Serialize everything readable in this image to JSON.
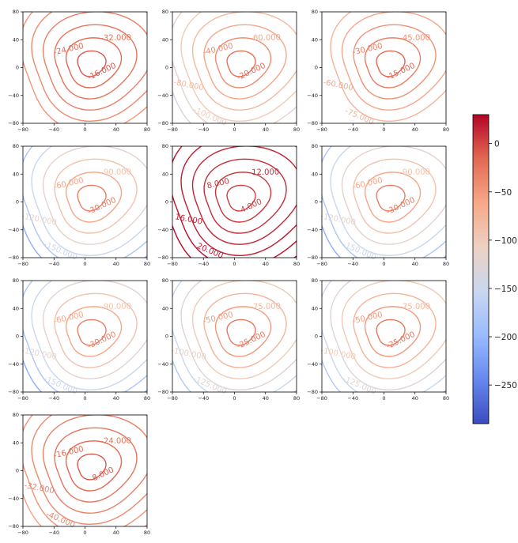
{
  "colorbar": {
    "colors": [
      "#3b4cc0",
      "#6788ee",
      "#9abbff",
      "#c9d7f0",
      "#edd1c2",
      "#f7a889",
      "#e26952",
      "#b40426"
    ],
    "range": [
      -290,
      30
    ],
    "ticks": [
      0,
      -50,
      -100,
      -150,
      -200,
      -250
    ],
    "tick_labels": [
      "0",
      "−50",
      "−100",
      "−150",
      "−200",
      "−250"
    ]
  },
  "chart_data": [
    {
      "type": "contour",
      "xlim": [
        -80,
        80
      ],
      "ylim": [
        -80,
        80
      ],
      "x_ticks": [
        -80,
        -40,
        0,
        40,
        80
      ],
      "y_ticks": [
        80,
        40,
        0,
        -40,
        -80
      ],
      "levels": [
        -48,
        -40,
        -32,
        -24,
        -16,
        -8
      ],
      "labels": [
        "-16.000",
        "-24.000",
        "-32.000"
      ]
    },
    {
      "type": "contour",
      "xlim": [
        -80,
        80
      ],
      "ylim": [
        -80,
        80
      ],
      "x_ticks": [
        -80,
        -40,
        0,
        40,
        80
      ],
      "y_ticks": [
        80,
        40,
        0,
        -40,
        -80
      ],
      "levels": [
        -140,
        -120,
        -100,
        -80,
        -60,
        -40,
        -20
      ],
      "labels": [
        "-20.000",
        "-40.000",
        "-60.000",
        "-80.000",
        "-100.000",
        "-120.000"
      ]
    },
    {
      "type": "contour",
      "xlim": [
        -80,
        80
      ],
      "ylim": [
        -80,
        80
      ],
      "x_ticks": [
        -80,
        -40,
        0,
        40,
        80
      ],
      "y_ticks": [
        80,
        40,
        0,
        -40,
        -80
      ],
      "levels": [
        -75,
        -60,
        -45,
        -30,
        -15
      ],
      "labels": [
        "-15.000",
        "-30.000",
        "-45.000",
        "-60.000",
        "-75.000"
      ]
    },
    {
      "type": "contour",
      "xlim": [
        -80,
        80
      ],
      "ylim": [
        -80,
        80
      ],
      "x_ticks": [
        -80,
        -40,
        0,
        40,
        80
      ],
      "y_ticks": [
        80,
        40,
        0,
        -40,
        -80
      ],
      "levels": [
        -210,
        -180,
        -150,
        -120,
        -90,
        -60,
        -30
      ],
      "labels": [
        "-30.000",
        "-60.000",
        "-90.000",
        "-120.000",
        "-150.000"
      ]
    },
    {
      "type": "contour",
      "xlim": [
        -80,
        80
      ],
      "ylim": [
        -80,
        80
      ],
      "x_ticks": [
        -80,
        -40,
        0,
        40,
        80
      ],
      "y_ticks": [
        80,
        40,
        0,
        -40,
        -80
      ],
      "levels": [
        28,
        24,
        20,
        16,
        12,
        8,
        4
      ],
      "labels": [
        "4.000",
        "8.000",
        "12.000",
        "16.000",
        "20.000",
        "24.000"
      ]
    },
    {
      "type": "contour",
      "xlim": [
        -80,
        80
      ],
      "ylim": [
        -80,
        80
      ],
      "x_ticks": [
        -80,
        -40,
        0,
        40,
        80
      ],
      "y_ticks": [
        80,
        40,
        0,
        -40,
        -80
      ],
      "levels": [
        -210,
        -180,
        -150,
        -120,
        -90,
        -60,
        -30
      ],
      "labels": [
        "-30.000",
        "-60.000",
        "-90.000",
        "-120.000",
        "-150.000"
      ]
    },
    {
      "type": "contour",
      "xlim": [
        -80,
        80
      ],
      "ylim": [
        -80,
        80
      ],
      "x_ticks": [
        -80,
        -40,
        0,
        40,
        80
      ],
      "y_ticks": [
        80,
        40,
        0,
        -40,
        -80
      ],
      "levels": [
        -210,
        -180,
        -150,
        -120,
        -90,
        -60,
        -30
      ],
      "labels": [
        "-30.000",
        "-60.000",
        "-90.000",
        "-120.000",
        "-150.000"
      ]
    },
    {
      "type": "contour",
      "xlim": [
        -80,
        80
      ],
      "ylim": [
        -80,
        80
      ],
      "x_ticks": [
        -80,
        -40,
        0,
        40,
        80
      ],
      "y_ticks": [
        80,
        40,
        0,
        -40,
        -80
      ],
      "levels": [
        -175,
        -150,
        -125,
        -100,
        -75,
        -50,
        -25
      ],
      "labels": [
        "-25.000",
        "-50.000",
        "-75.000",
        "-100.000",
        "-125.000",
        "-150.000"
      ]
    },
    {
      "type": "contour",
      "xlim": [
        -80,
        80
      ],
      "ylim": [
        -80,
        80
      ],
      "x_ticks": [
        -80,
        -40,
        0,
        40,
        80
      ],
      "y_ticks": [
        80,
        40,
        0,
        -40,
        -80
      ],
      "levels": [
        -175,
        -150,
        -125,
        -100,
        -75,
        -50,
        -25
      ],
      "labels": [
        "-25.000",
        "-50.000",
        "-75.000",
        "-100.000",
        "-125.000",
        "-150.000"
      ]
    },
    {
      "type": "contour",
      "xlim": [
        -80,
        80
      ],
      "ylim": [
        -80,
        80
      ],
      "x_ticks": [
        -80,
        -40,
        0,
        40,
        80
      ],
      "y_ticks": [
        80,
        40,
        0,
        -40,
        -80
      ],
      "levels": [
        -56,
        -48,
        -40,
        -32,
        -24,
        -16,
        -8
      ],
      "labels": [
        "-8.000",
        "-16.000",
        "-24.000",
        "-32.000",
        "-40.000",
        "-48.000"
      ]
    }
  ]
}
